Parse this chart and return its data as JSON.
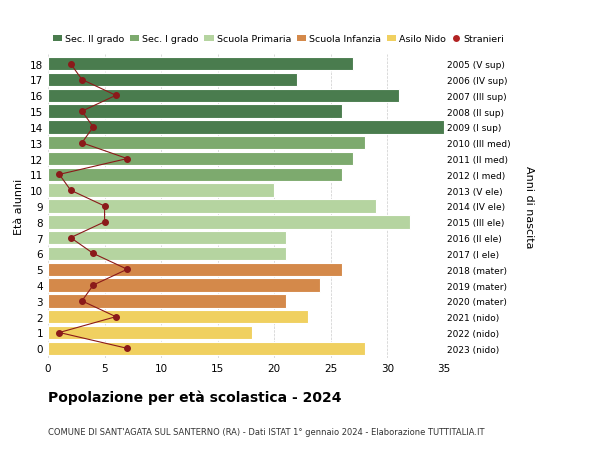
{
  "ages": [
    18,
    17,
    16,
    15,
    14,
    13,
    12,
    11,
    10,
    9,
    8,
    7,
    6,
    5,
    4,
    3,
    2,
    1,
    0
  ],
  "bar_values": [
    27,
    22,
    31,
    26,
    35,
    28,
    27,
    26,
    20,
    29,
    32,
    21,
    21,
    26,
    24,
    21,
    23,
    18,
    28
  ],
  "bar_colors": [
    "#4a7c4e",
    "#4a7c4e",
    "#4a7c4e",
    "#4a7c4e",
    "#4a7c4e",
    "#7daa6e",
    "#7daa6e",
    "#7daa6e",
    "#b5d4a0",
    "#b5d4a0",
    "#b5d4a0",
    "#b5d4a0",
    "#b5d4a0",
    "#d4894a",
    "#d4894a",
    "#d4894a",
    "#f0d060",
    "#f0d060",
    "#f0d060"
  ],
  "stranieri_values": [
    2,
    3,
    6,
    3,
    4,
    3,
    7,
    1,
    2,
    5,
    5,
    2,
    4,
    7,
    4,
    3,
    6,
    1,
    7
  ],
  "right_labels": [
    "2005 (V sup)",
    "2006 (IV sup)",
    "2007 (III sup)",
    "2008 (II sup)",
    "2009 (I sup)",
    "2010 (III med)",
    "2011 (II med)",
    "2012 (I med)",
    "2013 (V ele)",
    "2014 (IV ele)",
    "2015 (III ele)",
    "2016 (II ele)",
    "2017 (I ele)",
    "2018 (mater)",
    "2019 (mater)",
    "2020 (mater)",
    "2021 (nido)",
    "2022 (nido)",
    "2023 (nido)"
  ],
  "legend_labels": [
    "Sec. II grado",
    "Sec. I grado",
    "Scuola Primaria",
    "Scuola Infanzia",
    "Asilo Nido",
    "Stranieri"
  ],
  "legend_colors": [
    "#4a7c4e",
    "#7daa6e",
    "#b5d4a0",
    "#d4894a",
    "#f0d060",
    "#b22222"
  ],
  "ylabel_left": "Età alunni",
  "ylabel_right": "Anni di nascita",
  "title": "Popolazione per età scolastica - 2024",
  "subtitle": "COMUNE DI SANT'AGATA SUL SANTERNO (RA) - Dati ISTAT 1° gennaio 2024 - Elaborazione TUTTITALIA.IT",
  "xlim": [
    0,
    35
  ],
  "xticks": [
    0,
    5,
    10,
    15,
    20,
    25,
    30,
    35
  ],
  "background_color": "#ffffff",
  "bar_height": 0.85,
  "stranieri_color": "#8b1a1a",
  "stranieri_line_color": "#8b1a1a",
  "grid_color": "#cccccc"
}
